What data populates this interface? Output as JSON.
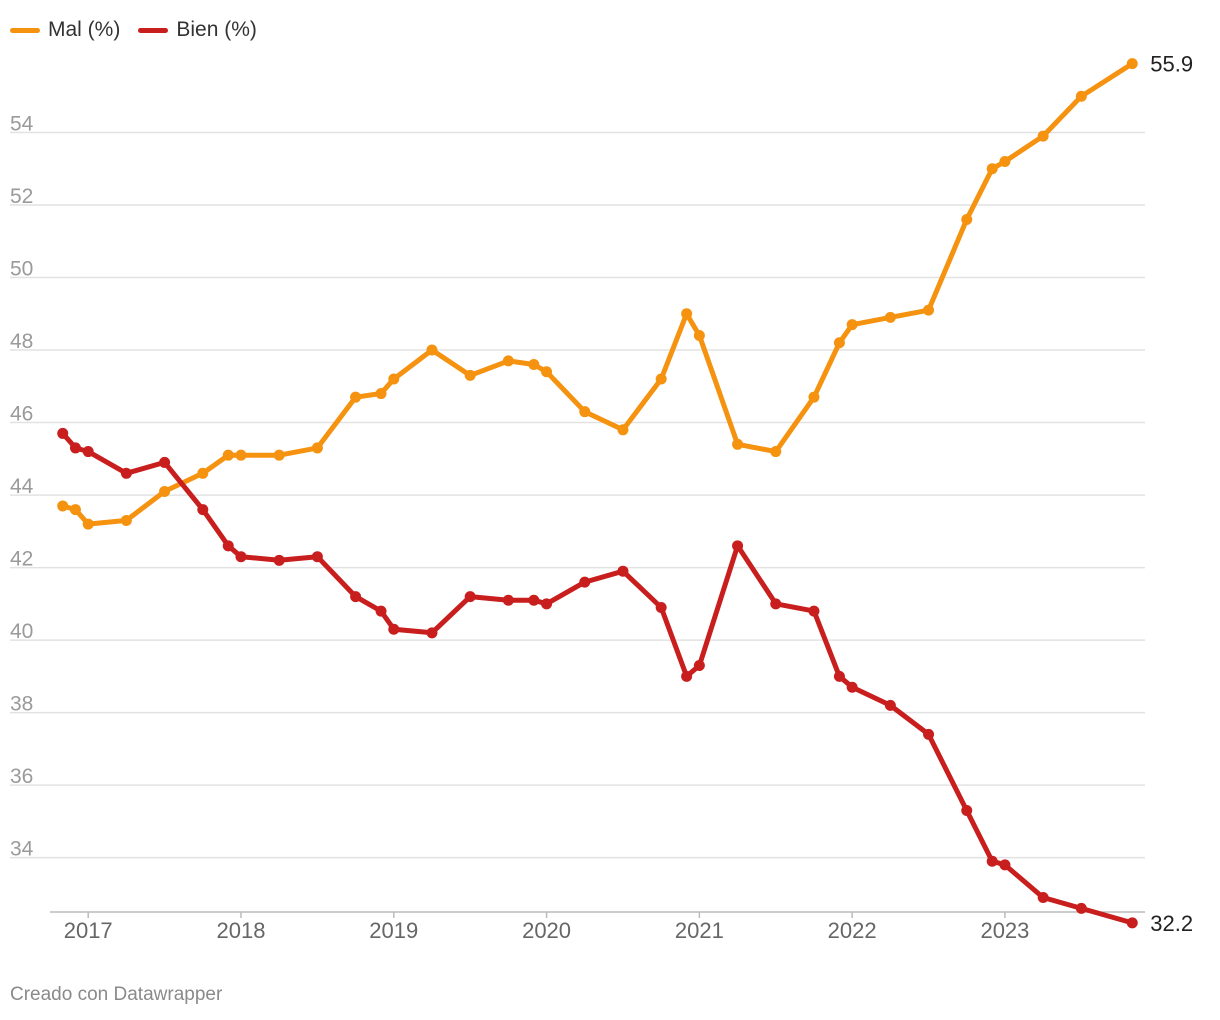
{
  "legend": [
    {
      "label": "Mal (%)",
      "color": "#f5920f"
    },
    {
      "label": "Bien (%)",
      "color": "#c81e1e"
    }
  ],
  "credit": "Creado con Datawrapper",
  "chart_data": {
    "type": "line",
    "title": "",
    "xlabel": "",
    "ylabel": "",
    "ylim": [
      32.5,
      56
    ],
    "xlim": [
      "2016-10",
      "2023-12"
    ],
    "y_ticks": [
      34,
      36,
      38,
      40,
      42,
      44,
      46,
      48,
      50,
      52,
      54
    ],
    "x_ticks": [
      "2017",
      "2018",
      "2019",
      "2020",
      "2021",
      "2022",
      "2023"
    ],
    "grid": "horizontal",
    "legend_position": "top-left",
    "series": [
      {
        "name": "Mal (%)",
        "color": "#f5920f",
        "end_label": "55.9",
        "points": [
          [
            "2016-11",
            43.7
          ],
          [
            "2016-12",
            43.6
          ],
          [
            "2017-01",
            43.2
          ],
          [
            "2017-04",
            43.3
          ],
          [
            "2017-07",
            44.1
          ],
          [
            "2017-10",
            44.6
          ],
          [
            "2017-12",
            45.1
          ],
          [
            "2018-01",
            45.1
          ],
          [
            "2018-04",
            45.1
          ],
          [
            "2018-07",
            45.3
          ],
          [
            "2018-10",
            46.7
          ],
          [
            "2018-12",
            46.8
          ],
          [
            "2019-01",
            47.2
          ],
          [
            "2019-04",
            48.0
          ],
          [
            "2019-07",
            47.3
          ],
          [
            "2019-10",
            47.7
          ],
          [
            "2019-12",
            47.6
          ],
          [
            "2020-01",
            47.4
          ],
          [
            "2020-04",
            46.3
          ],
          [
            "2020-07",
            45.8
          ],
          [
            "2020-10",
            47.2
          ],
          [
            "2020-12",
            49.0
          ],
          [
            "2021-01",
            48.4
          ],
          [
            "2021-04",
            45.4
          ],
          [
            "2021-07",
            45.2
          ],
          [
            "2021-10",
            46.7
          ],
          [
            "2021-12",
            48.2
          ],
          [
            "2022-01",
            48.7
          ],
          [
            "2022-04",
            48.9
          ],
          [
            "2022-07",
            49.1
          ],
          [
            "2022-10",
            51.6
          ],
          [
            "2022-12",
            53.0
          ],
          [
            "2023-01",
            53.2
          ],
          [
            "2023-04",
            53.9
          ],
          [
            "2023-07",
            55.0
          ],
          [
            "2023-11",
            55.9
          ]
        ]
      },
      {
        "name": "Bien (%)",
        "color": "#c81e1e",
        "end_label": "32.2",
        "points": [
          [
            "2016-11",
            45.7
          ],
          [
            "2016-12",
            45.3
          ],
          [
            "2017-01",
            45.2
          ],
          [
            "2017-04",
            44.6
          ],
          [
            "2017-07",
            44.9
          ],
          [
            "2017-10",
            43.6
          ],
          [
            "2017-12",
            42.6
          ],
          [
            "2018-01",
            42.3
          ],
          [
            "2018-04",
            42.2
          ],
          [
            "2018-07",
            42.3
          ],
          [
            "2018-10",
            41.2
          ],
          [
            "2018-12",
            40.8
          ],
          [
            "2019-01",
            40.3
          ],
          [
            "2019-04",
            40.2
          ],
          [
            "2019-07",
            41.2
          ],
          [
            "2019-10",
            41.1
          ],
          [
            "2019-12",
            41.1
          ],
          [
            "2020-01",
            41.0
          ],
          [
            "2020-04",
            41.6
          ],
          [
            "2020-07",
            41.9
          ],
          [
            "2020-10",
            40.9
          ],
          [
            "2020-12",
            39.0
          ],
          [
            "2021-01",
            39.3
          ],
          [
            "2021-04",
            42.6
          ],
          [
            "2021-07",
            41.0
          ],
          [
            "2021-10",
            40.8
          ],
          [
            "2021-12",
            39.0
          ],
          [
            "2022-01",
            38.7
          ],
          [
            "2022-04",
            38.2
          ],
          [
            "2022-07",
            37.4
          ],
          [
            "2022-10",
            35.3
          ],
          [
            "2022-12",
            33.9
          ],
          [
            "2023-01",
            33.8
          ],
          [
            "2023-04",
            32.9
          ],
          [
            "2023-07",
            32.6
          ],
          [
            "2023-11",
            32.2
          ]
        ]
      }
    ]
  }
}
